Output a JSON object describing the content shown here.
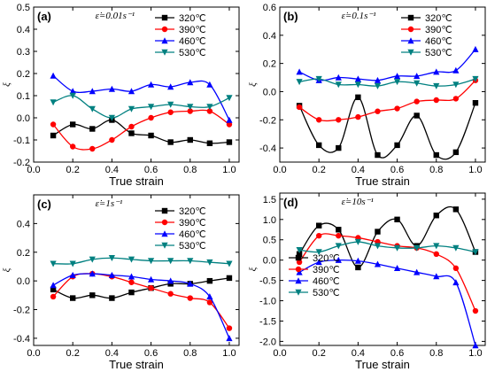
{
  "chart_data": [
    {
      "type": "line",
      "panel_label": "(a)",
      "strain_rate": "ε̇=0.01s⁻¹",
      "xlabel": "True strain",
      "ylabel": "ξ",
      "xlim": [
        0.0,
        1.05
      ],
      "ylim": [
        -0.2,
        0.5
      ],
      "xticks": [
        "0.0",
        "0.2",
        "0.4",
        "0.6",
        "0.8",
        "1.0"
      ],
      "yticks": [
        "-0.2",
        "-0.1",
        "0.0",
        "0.1",
        "0.2",
        "0.3",
        "0.4",
        "0.5"
      ],
      "legend_position": "top-right",
      "x": [
        0.1,
        0.2,
        0.3,
        0.4,
        0.5,
        0.6,
        0.7,
        0.8,
        0.9,
        1.0
      ],
      "series": [
        {
          "name": "320℃",
          "color": "#000000",
          "marker": "square",
          "values": [
            -0.08,
            -0.03,
            -0.05,
            -0.01,
            -0.07,
            -0.08,
            -0.11,
            -0.1,
            -0.115,
            -0.11
          ]
        },
        {
          "name": "390℃",
          "color": "#ff0000",
          "marker": "circle",
          "values": [
            -0.03,
            -0.13,
            -0.14,
            -0.1,
            -0.04,
            0.0,
            0.025,
            0.03,
            0.03,
            -0.03
          ]
        },
        {
          "name": "460℃",
          "color": "#0000ff",
          "marker": "triangle-up",
          "values": [
            0.19,
            0.12,
            0.12,
            0.13,
            0.12,
            0.15,
            0.14,
            0.16,
            0.15,
            -0.01
          ]
        },
        {
          "name": "530℃",
          "color": "#008080",
          "marker": "triangle-down",
          "values": [
            0.07,
            0.1,
            0.04,
            0.0,
            0.04,
            0.05,
            0.06,
            0.05,
            0.05,
            0.09
          ]
        }
      ]
    },
    {
      "type": "line",
      "panel_label": "(b)",
      "strain_rate": "ε̇=0.1s⁻¹",
      "xlabel": "True strain",
      "ylabel": "ξ",
      "xlim": [
        0.0,
        1.05
      ],
      "ylim": [
        -0.5,
        0.6
      ],
      "xticks": [
        "0.0",
        "0.2",
        "0.4",
        "0.6",
        "0.8",
        "1.0"
      ],
      "yticks": [
        "-0.4",
        "-0.2",
        "0.0",
        "0.2",
        "0.4",
        "0.6"
      ],
      "legend_position": "top-right",
      "x": [
        0.1,
        0.2,
        0.3,
        0.4,
        0.5,
        0.6,
        0.7,
        0.8,
        0.9,
        1.0
      ],
      "series": [
        {
          "name": "320℃",
          "color": "#000000",
          "marker": "square",
          "values": [
            -0.1,
            -0.38,
            -0.4,
            -0.04,
            -0.45,
            -0.38,
            -0.17,
            -0.45,
            -0.43,
            -0.08
          ]
        },
        {
          "name": "390℃",
          "color": "#ff0000",
          "marker": "circle",
          "values": [
            -0.11,
            -0.2,
            -0.2,
            -0.18,
            -0.14,
            -0.12,
            -0.07,
            -0.06,
            -0.05,
            0.08
          ]
        },
        {
          "name": "460℃",
          "color": "#0000ff",
          "marker": "triangle-up",
          "values": [
            0.14,
            0.08,
            0.1,
            0.09,
            0.08,
            0.11,
            0.11,
            0.14,
            0.15,
            0.3
          ]
        },
        {
          "name": "530℃",
          "color": "#008080",
          "marker": "triangle-down",
          "values": [
            0.07,
            0.09,
            0.05,
            0.05,
            0.04,
            0.07,
            0.06,
            0.04,
            0.05,
            0.09
          ]
        }
      ]
    },
    {
      "type": "line",
      "panel_label": "(c)",
      "strain_rate": "ε̇=1s⁻¹",
      "xlabel": "True strain",
      "ylabel": "ξ",
      "xlim": [
        0.0,
        1.05
      ],
      "ylim": [
        -0.45,
        0.6
      ],
      "xticks": [
        "0.0",
        "0.2",
        "0.4",
        "0.6",
        "0.8",
        "1.0"
      ],
      "yticks": [
        "-0.4",
        "-0.2",
        "0.0",
        "0.2",
        "0.4"
      ],
      "legend_position": "top-right",
      "x": [
        0.1,
        0.2,
        0.3,
        0.4,
        0.5,
        0.6,
        0.7,
        0.8,
        0.9,
        1.0
      ],
      "series": [
        {
          "name": "320℃",
          "color": "#000000",
          "marker": "square",
          "values": [
            -0.06,
            -0.12,
            -0.1,
            -0.12,
            -0.08,
            -0.05,
            -0.02,
            -0.02,
            0.0,
            0.02
          ]
        },
        {
          "name": "390℃",
          "color": "#ff0000",
          "marker": "circle",
          "values": [
            -0.11,
            0.03,
            0.05,
            0.03,
            -0.01,
            -0.05,
            -0.09,
            -0.12,
            -0.15,
            -0.33
          ]
        },
        {
          "name": "460℃",
          "color": "#0000ff",
          "marker": "triangle-up",
          "values": [
            -0.03,
            0.04,
            0.05,
            0.04,
            0.03,
            0.01,
            0.0,
            -0.02,
            -0.11,
            -0.4
          ]
        },
        {
          "name": "530℃",
          "color": "#008080",
          "marker": "triangle-down",
          "values": [
            0.12,
            0.12,
            0.15,
            0.16,
            0.15,
            0.14,
            0.14,
            0.14,
            0.13,
            0.12
          ]
        }
      ]
    },
    {
      "type": "line",
      "panel_label": "(d)",
      "strain_rate": "ε̇=10s⁻¹",
      "xlabel": "True strain",
      "ylabel": "ξ",
      "xlim": [
        0.0,
        1.05
      ],
      "ylim": [
        -2.1,
        1.65
      ],
      "xticks": [
        "0.0",
        "0.2",
        "0.4",
        "0.6",
        "0.8",
        "1.0"
      ],
      "yticks": [
        "-2.0",
        "-1.5",
        "-1.0",
        "-0.5",
        "0.0",
        "0.5",
        "1.0",
        "1.5"
      ],
      "legend_position": "center-left",
      "x": [
        0.1,
        0.2,
        0.3,
        0.4,
        0.5,
        0.6,
        0.7,
        0.8,
        0.9,
        1.0
      ],
      "series": [
        {
          "name": "320℃",
          "color": "#000000",
          "marker": "square",
          "values": [
            0.15,
            0.85,
            0.75,
            -0.18,
            0.7,
            1.0,
            0.35,
            1.1,
            1.25,
            0.2
          ]
        },
        {
          "name": "390℃",
          "color": "#ff0000",
          "marker": "circle",
          "values": [
            -0.05,
            0.6,
            0.6,
            0.55,
            0.45,
            0.35,
            0.3,
            0.15,
            -0.2,
            -1.25
          ]
        },
        {
          "name": "460℃",
          "color": "#0000ff",
          "marker": "triangle-up",
          "values": [
            -0.3,
            -0.05,
            0.0,
            -0.02,
            -0.1,
            -0.2,
            -0.3,
            -0.4,
            -0.55,
            -2.1
          ]
        },
        {
          "name": "530℃",
          "color": "#008080",
          "marker": "triangle-down",
          "values": [
            0.25,
            0.2,
            0.35,
            0.45,
            0.35,
            0.3,
            0.3,
            0.35,
            0.3,
            0.2
          ]
        }
      ]
    }
  ]
}
